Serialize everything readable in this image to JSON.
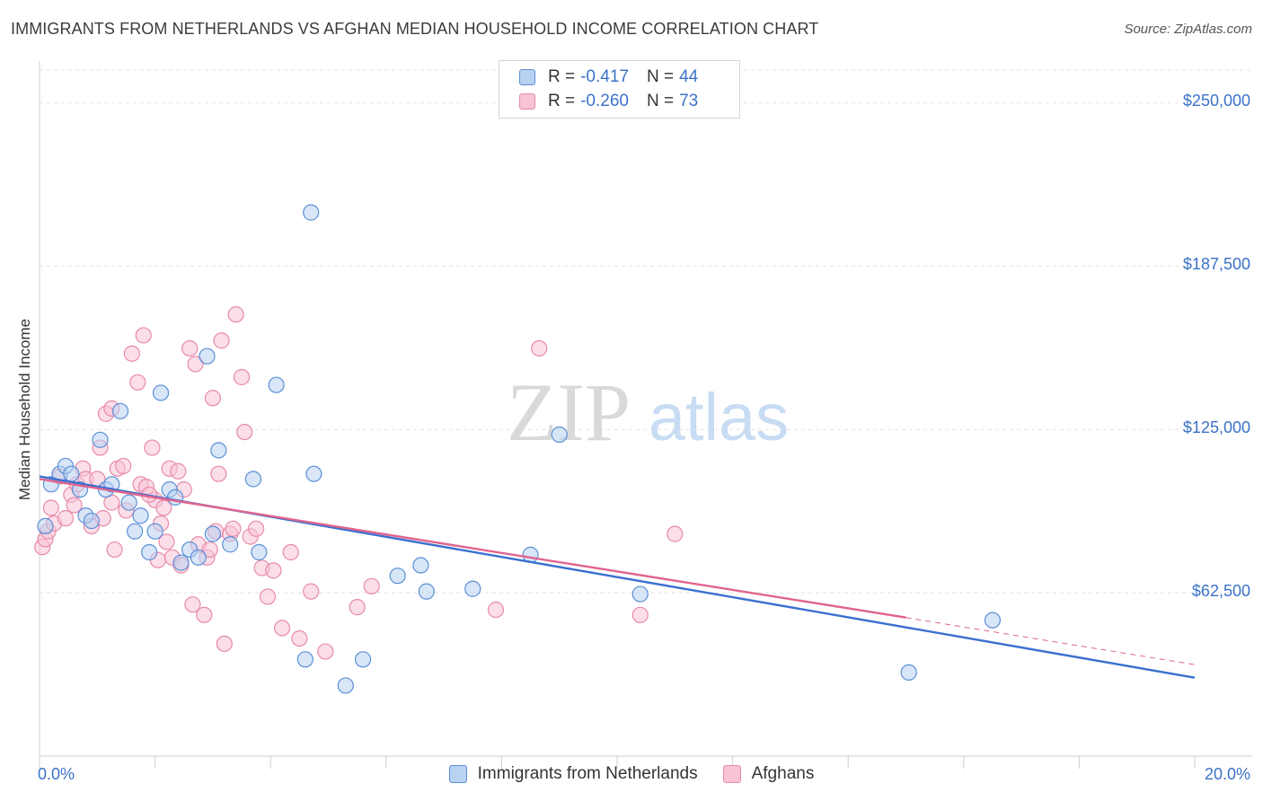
{
  "title": "IMMIGRANTS FROM NETHERLANDS VS AFGHAN MEDIAN HOUSEHOLD INCOME CORRELATION CHART",
  "source": "Source: ZipAtlas.com",
  "watermark": {
    "zip": "ZIP",
    "atlas": "atlas"
  },
  "legend": {
    "rows": [
      {
        "r_label": "R =",
        "r_value": "-0.417",
        "n_label": "N =",
        "n_value": "44"
      },
      {
        "r_label": "R =",
        "r_value": "-0.260",
        "n_label": "N =",
        "n_value": "73"
      }
    ]
  },
  "colors": {
    "blue_fill": "#b8d2f2",
    "blue_stroke": "#5b8fd6",
    "blue_line": "#3a70d0",
    "pink_fill": "#f7c3d5",
    "pink_stroke": "#e88aa9",
    "pink_line": "#e0648e",
    "grid": "#e2e2e2",
    "tick_text": "#3b72c8"
  },
  "chart_data": {
    "type": "scatter",
    "title": "IMMIGRANTS FROM NETHERLANDS VS AFGHAN MEDIAN HOUSEHOLD INCOME CORRELATION CHART",
    "xlabel": "",
    "ylabel": "Median Household Income",
    "xlim": [
      0,
      20
    ],
    "ylim": [
      0,
      262500
    ],
    "x_tick_labels": [
      "0.0%",
      "20.0%"
    ],
    "y_ticks": [
      62500,
      125000,
      187500,
      250000
    ],
    "y_tick_labels": [
      "$62,500",
      "$125,000",
      "$187,500",
      "$250,000"
    ],
    "grid": true,
    "legend_placement": "top-center",
    "series": [
      {
        "name": "Immigrants from Netherlands",
        "color": "#5b8fd6",
        "points": [
          [
            0.2,
            104000
          ],
          [
            0.35,
            108000
          ],
          [
            0.45,
            111000
          ],
          [
            0.55,
            108000
          ],
          [
            0.7,
            102000
          ],
          [
            0.8,
            92000
          ],
          [
            0.9,
            90000
          ],
          [
            1.05,
            121000
          ],
          [
            1.15,
            102000
          ],
          [
            1.25,
            104000
          ],
          [
            1.4,
            132000
          ],
          [
            1.55,
            97000
          ],
          [
            1.65,
            86000
          ],
          [
            1.75,
            92000
          ],
          [
            1.9,
            78000
          ],
          [
            2.0,
            86000
          ],
          [
            2.1,
            139000
          ],
          [
            2.25,
            102000
          ],
          [
            2.35,
            99000
          ],
          [
            2.45,
            74000
          ],
          [
            2.6,
            79000
          ],
          [
            2.75,
            76000
          ],
          [
            2.9,
            153000
          ],
          [
            3.0,
            85000
          ],
          [
            3.1,
            117000
          ],
          [
            3.3,
            81000
          ],
          [
            3.7,
            106000
          ],
          [
            3.8,
            78000
          ],
          [
            4.1,
            142000
          ],
          [
            4.6,
            37000
          ],
          [
            4.7,
            208000
          ],
          [
            4.75,
            108000
          ],
          [
            5.3,
            27000
          ],
          [
            5.6,
            37000
          ],
          [
            6.2,
            69000
          ],
          [
            6.6,
            73000
          ],
          [
            6.7,
            63000
          ],
          [
            7.5,
            64000
          ],
          [
            8.5,
            77000
          ],
          [
            9.0,
            123000
          ],
          [
            10.4,
            62000
          ],
          [
            15.05,
            32000
          ],
          [
            16.5,
            52000
          ],
          [
            0.1,
            88000
          ]
        ]
      },
      {
        "name": "Afghans",
        "color": "#e88aa9",
        "points": [
          [
            0.05,
            80000
          ],
          [
            0.1,
            83000
          ],
          [
            0.15,
            86000
          ],
          [
            0.25,
            89000
          ],
          [
            0.35,
            107000
          ],
          [
            0.45,
            91000
          ],
          [
            0.55,
            100000
          ],
          [
            0.65,
            104000
          ],
          [
            0.75,
            110000
          ],
          [
            0.8,
            106000
          ],
          [
            0.9,
            88000
          ],
          [
            1.0,
            106000
          ],
          [
            1.05,
            118000
          ],
          [
            1.1,
            91000
          ],
          [
            1.15,
            131000
          ],
          [
            1.25,
            133000
          ],
          [
            1.3,
            79000
          ],
          [
            1.35,
            110000
          ],
          [
            1.45,
            111000
          ],
          [
            1.5,
            94000
          ],
          [
            1.6,
            154000
          ],
          [
            1.7,
            143000
          ],
          [
            1.75,
            104000
          ],
          [
            1.8,
            161000
          ],
          [
            1.85,
            103000
          ],
          [
            1.95,
            118000
          ],
          [
            2.0,
            98000
          ],
          [
            2.05,
            75000
          ],
          [
            2.15,
            95000
          ],
          [
            2.2,
            82000
          ],
          [
            2.25,
            110000
          ],
          [
            2.3,
            76000
          ],
          [
            2.4,
            109000
          ],
          [
            2.5,
            102000
          ],
          [
            2.6,
            156000
          ],
          [
            2.65,
            58000
          ],
          [
            2.7,
            150000
          ],
          [
            2.75,
            81000
          ],
          [
            2.85,
            54000
          ],
          [
            2.9,
            76000
          ],
          [
            3.0,
            137000
          ],
          [
            3.05,
            86000
          ],
          [
            3.1,
            108000
          ],
          [
            3.15,
            159000
          ],
          [
            3.2,
            43000
          ],
          [
            3.3,
            85000
          ],
          [
            3.4,
            169000
          ],
          [
            3.5,
            145000
          ],
          [
            3.55,
            124000
          ],
          [
            3.65,
            84000
          ],
          [
            3.75,
            87000
          ],
          [
            3.85,
            72000
          ],
          [
            3.95,
            61000
          ],
          [
            4.05,
            71000
          ],
          [
            4.2,
            49000
          ],
          [
            4.35,
            78000
          ],
          [
            4.5,
            45000
          ],
          [
            4.7,
            63000
          ],
          [
            4.95,
            40000
          ],
          [
            5.5,
            57000
          ],
          [
            5.75,
            65000
          ],
          [
            7.9,
            56000
          ],
          [
            8.65,
            156000
          ],
          [
            10.4,
            54000
          ],
          [
            11.0,
            85000
          ],
          [
            0.2,
            95000
          ],
          [
            1.9,
            100000
          ],
          [
            2.45,
            73000
          ],
          [
            2.95,
            79000
          ],
          [
            3.35,
            87000
          ],
          [
            0.6,
            96000
          ],
          [
            1.25,
            97000
          ],
          [
            2.1,
            89000
          ]
        ]
      }
    ],
    "trendlines": [
      {
        "series": "Immigrants from Netherlands",
        "x": [
          0,
          20
        ],
        "y": [
          107000,
          30000
        ],
        "style": "solid"
      },
      {
        "series": "Afghans",
        "x": [
          0,
          15
        ],
        "y": [
          106000,
          53000
        ],
        "style": "solid"
      },
      {
        "series": "Afghans",
        "x": [
          15,
          20
        ],
        "y": [
          53000,
          35000
        ],
        "style": "dashed"
      }
    ]
  }
}
